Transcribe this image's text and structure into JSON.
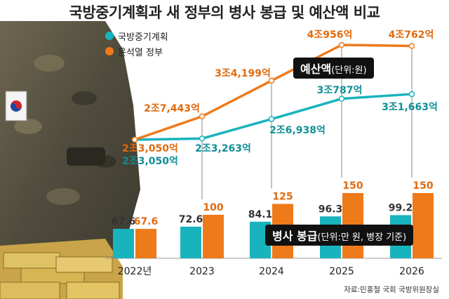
{
  "title": "국방중기계획과 새 정부의 병사 봉급 및 예산액 비교",
  "legend": [
    {
      "label": "국방중기계획",
      "color": "#19b3bd"
    },
    {
      "label": "윤석열 정부",
      "color": "#ef7a1a"
    }
  ],
  "budget_box": {
    "label": "예산액",
    "unit": "(단위:원)"
  },
  "salary_box": {
    "label": "병사 봉급",
    "unit": "(단위:만 원, 병장 기준)"
  },
  "source": "자료:민홍철 국회 국방위원장실",
  "chart_data": {
    "type": "bar",
    "categories": [
      "2022년",
      "2023",
      "2024",
      "2025",
      "2026"
    ],
    "series": [
      {
        "name": "국방중기계획",
        "color": "#19b3bd",
        "values": [
          67.6,
          72.6,
          84.1,
          96.3,
          99.2
        ],
        "labels": [
          "67.6",
          "72.6",
          "84.1",
          "96.3",
          "99.2"
        ]
      },
      {
        "name": "윤석열 정부",
        "color": "#ef7a1a",
        "values": [
          67.6,
          100,
          125,
          150,
          150
        ],
        "labels": [
          "67.6",
          "100",
          "125",
          "150",
          "150"
        ]
      }
    ],
    "budget_lines": [
      {
        "name": "국방중기계획",
        "color": "#19b3bd",
        "values": [
          23050,
          23263,
          26938,
          30787,
          31663
        ],
        "labels": [
          "2조3,050억",
          "2조3,263억",
          "2조6,938억",
          "3조787억",
          "3조1,663억"
        ]
      },
      {
        "name": "윤석열 정부",
        "color": "#ef7a1a",
        "values": [
          23050,
          27443,
          34199,
          40956,
          40762
        ],
        "labels": [
          "2조3,050억",
          "2조7,443억",
          "3조4,199억",
          "4조956억",
          "4조762억"
        ]
      }
    ]
  }
}
